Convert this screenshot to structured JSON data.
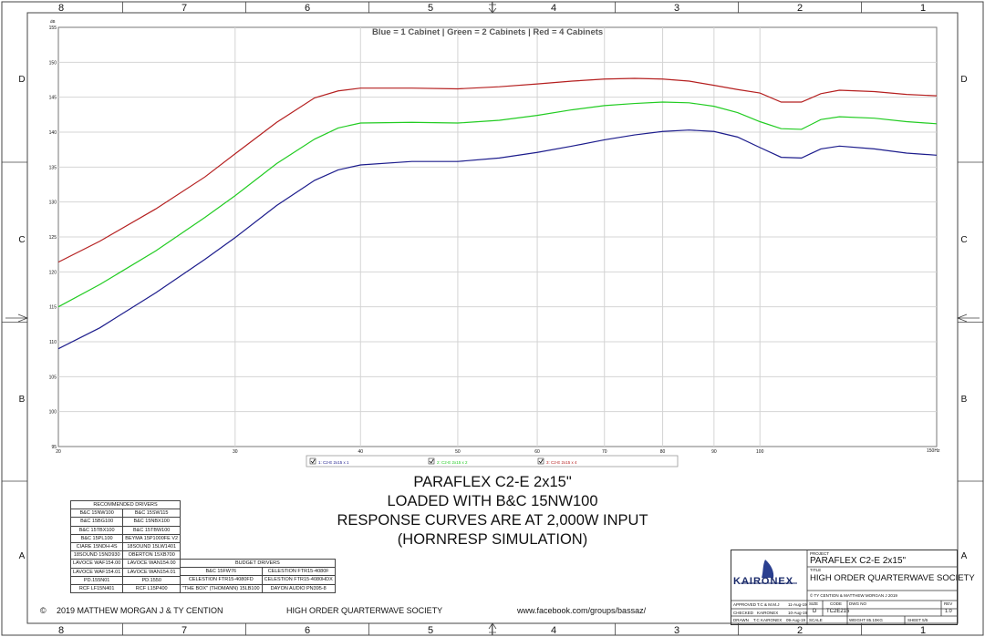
{
  "chart_data": {
    "type": "line",
    "title": "Blue = 1 Cabinet | Green = 2 Cabinets | Red = 4 Cabinets",
    "xscale": "log",
    "xlim": [
      20,
      150
    ],
    "ylim": [
      95,
      155
    ],
    "y_unit": "dB",
    "x_unit_label": "150Hz",
    "y_ticks": [
      155,
      150,
      145,
      140,
      135,
      130,
      125,
      120,
      115,
      110,
      105,
      100,
      95
    ],
    "y_tick_labels": [
      "155",
      "150",
      "145",
      "140",
      "135",
      "130",
      "125",
      "120",
      "115",
      "110",
      "105",
      "100",
      "95"
    ],
    "x_ticks": [
      20,
      30,
      40,
      50,
      60,
      70,
      80,
      90,
      100
    ],
    "x_tick_labels": [
      "20",
      "30",
      "40",
      "50",
      "60",
      "70",
      "80",
      "90",
      "100"
    ],
    "grid": true,
    "series": [
      {
        "name": "1: C2-E 2x15 x 1",
        "color": "#1c1c8c",
        "x": [
          20,
          22,
          25,
          28,
          30,
          33,
          36,
          38,
          40,
          45,
          50,
          55,
          60,
          65,
          70,
          75,
          80,
          85,
          90,
          95,
          100,
          105,
          110,
          115,
          120,
          130,
          140,
          150
        ],
        "y": [
          109,
          112,
          117,
          121.8,
          124.9,
          129.5,
          133.1,
          134.6,
          135.3,
          135.8,
          135.8,
          136.3,
          137.1,
          138,
          138.9,
          139.6,
          140.1,
          140.3,
          140.1,
          139.3,
          137.8,
          136.4,
          136.3,
          137.6,
          138,
          137.6,
          137,
          136.7
        ]
      },
      {
        "name": "2: C2-E 2x15 x 2",
        "color": "#22cc22",
        "x": [
          20,
          22,
          25,
          28,
          30,
          33,
          36,
          38,
          40,
          45,
          50,
          55,
          60,
          65,
          70,
          75,
          80,
          85,
          90,
          95,
          100,
          105,
          110,
          115,
          120,
          130,
          140,
          150
        ],
        "y": [
          115,
          118.2,
          123,
          127.8,
          130.9,
          135.5,
          139,
          140.6,
          141.3,
          141.4,
          141.3,
          141.7,
          142.4,
          143.2,
          143.8,
          144.1,
          144.3,
          144.2,
          143.7,
          142.8,
          141.5,
          140.5,
          140.4,
          141.8,
          142.2,
          142,
          141.5,
          141.2
        ]
      },
      {
        "name": "3: C2-E 2x15 x 4",
        "color": "#b52020",
        "x": [
          20,
          22,
          25,
          28,
          30,
          33,
          36,
          38,
          40,
          45,
          50,
          55,
          60,
          65,
          70,
          75,
          80,
          85,
          90,
          95,
          100,
          105,
          110,
          115,
          120,
          130,
          140,
          150
        ],
        "y": [
          121.4,
          124.4,
          129,
          133.6,
          136.9,
          141.4,
          144.9,
          145.9,
          146.3,
          146.3,
          146.2,
          146.5,
          146.9,
          147.3,
          147.6,
          147.7,
          147.6,
          147.3,
          146.7,
          146.1,
          145.6,
          144.3,
          144.3,
          145.5,
          146,
          145.8,
          145.4,
          145.2
        ]
      }
    ],
    "legend": [
      "1: C2-E 2x15 x 1",
      "2: C2-E 2x15 x 2",
      "3: C2-E 2x15 x 4"
    ],
    "legend_placement": "bottom"
  },
  "border": {
    "cols": [
      "8",
      "7",
      "6",
      "5",
      "4",
      "3",
      "2",
      "1"
    ],
    "rows": [
      "D",
      "C",
      "B",
      "A"
    ]
  },
  "main_title": [
    "PARAFLEX C2-E 2x15\"",
    "LOADED WITH B&C 15NW100",
    "RESPONSE CURVES ARE AT 2,000W INPUT",
    "(HORNRESP SIMULATION)"
  ],
  "recommended": {
    "header": "RECOMMENDED DRIVERS",
    "rows": [
      [
        "B&C 15NW100",
        "B&C 15SW115"
      ],
      [
        "B&C 15BG100",
        "B&C 15NBX100"
      ],
      [
        "B&C 15TBX100",
        "B&C 15TBW100"
      ],
      [
        "B&C 15PL100",
        "BEYMA 15P1000FE V2"
      ],
      [
        "CIARE 15NDH-4S",
        "18SOUND 15LW1401"
      ],
      [
        "18SOUND 15ND930",
        "OBERTON 15XB700"
      ],
      [
        "LAVOCE WAF154.00",
        "LAVOCE WAN154.00"
      ],
      [
        "LAVOCE WAF154.01",
        "LAVOCE WAN154.01"
      ],
      [
        "PD.155N01",
        "PD.1550"
      ],
      [
        "RCF LF15N401",
        "RCF L15P400"
      ]
    ]
  },
  "budget": {
    "header": "BUDGET DRIVERS",
    "rows": [
      [
        "B&C 15FW76",
        "CELESTION FTR15-4080F"
      ],
      [
        "CELESTION FTR15-4080FD",
        "CELESTION FTR15-4080HDX"
      ],
      [
        "\"THE BOX\" (THOMANN) 15LB100",
        "DAYON AUDIO PN395-8"
      ]
    ]
  },
  "footer": {
    "copyright_symbol": "©",
    "copyright": "2019 MATTHEW MORGAN J & TY CENTION",
    "society": "HIGH ORDER QUARTERWAVE SOCIETY",
    "url": "www.facebook.com/groups/bassaz/"
  },
  "title_block": {
    "logo": "KAIRONEX",
    "project_label": "PROJECT",
    "project": "PARAFLEX C2-E 2x15\"",
    "title_label": "TITLE",
    "title": "HIGH ORDER QUARTERWAVE SOCIETY",
    "copyright": "© TY CENTION & MATTHEW MORGAN J 2019",
    "approved_label": "APPROVED",
    "approved": "T.C & M.M.J",
    "approved_date": "11-Aug-19",
    "checked_label": "CHECKED",
    "checked": "KAIRONEX",
    "checked_date": "10-Aug-19",
    "drawn_label": "DRAWN",
    "drawn": "T.C KAIRONEX",
    "drawn_date": "09-Aug-19",
    "size_label": "SIZE",
    "size": "D",
    "code_label": "CODE",
    "code": "TC2E215",
    "dwg_label": "DWG NO",
    "rev_label": "REV",
    "rev": "1.0",
    "scale_label": "SCALE",
    "weight": "WEIGHT 85.10KG",
    "sheet": "SHEET 5/5"
  }
}
